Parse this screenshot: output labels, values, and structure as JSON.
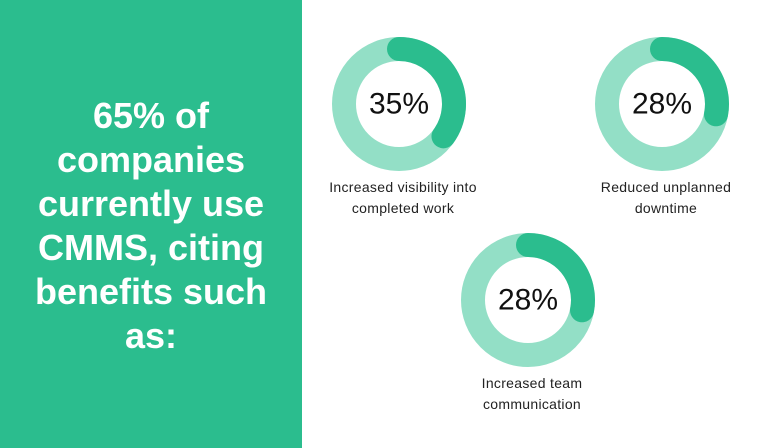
{
  "title": "65% of companies currently use CMMS, citing benefits such as:",
  "chart_data": [
    {
      "type": "donut",
      "categories": [
        "Increased visibility into completed work"
      ],
      "values": [
        35
      ],
      "value_labels": [
        "35%"
      ],
      "color": "#2bbd8e",
      "track_color": "#93dfc6"
    },
    {
      "type": "donut",
      "categories": [
        "Reduced unplanned downtime"
      ],
      "values": [
        28
      ],
      "value_labels": [
        "28%"
      ],
      "color": "#2bbd8e",
      "track_color": "#93dfc6"
    },
    {
      "type": "donut",
      "categories": [
        "Increased team communication"
      ],
      "values": [
        28
      ],
      "value_labels": [
        "28%"
      ],
      "color": "#2bbd8e",
      "track_color": "#93dfc6"
    }
  ]
}
